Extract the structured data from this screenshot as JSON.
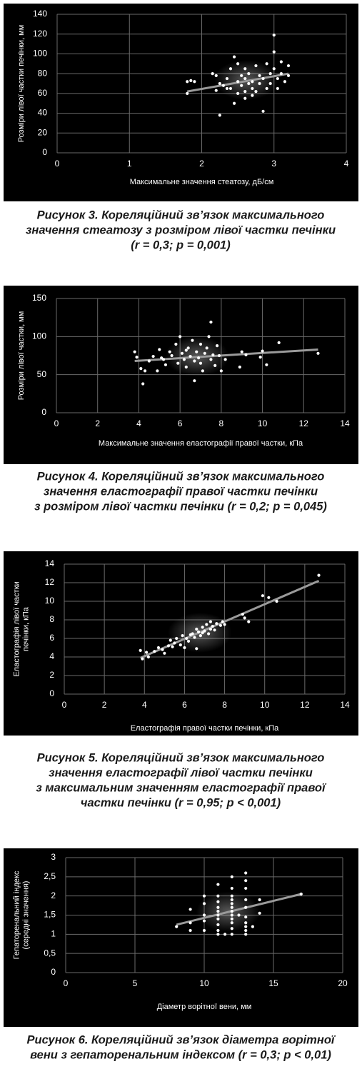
{
  "chart_data": [
    {
      "type": "scatter",
      "xlabel": "Максимальне значення стеатозу, дБ/см",
      "ylabel": [
        "Розміри лівої частки печінки, мм"
      ],
      "caption": [
        "Рисунок 3. Кореляційний зв’язок максимального",
        "значення стеатозу з розміром лівої частки печінки",
        "(r = 0,3; p = 0,001)"
      ],
      "xlim": [
        0,
        4
      ],
      "xticks": [
        0,
        1,
        2,
        3,
        4
      ],
      "ylim": [
        0,
        140
      ],
      "yticks": [
        0,
        20,
        40,
        60,
        80,
        100,
        120,
        140
      ],
      "grid": true,
      "color": "#ffffff",
      "trend_color": "#9a9a9a",
      "x": [
        1.8,
        1.8,
        1.85,
        1.9,
        2.15,
        2.2,
        2.2,
        2.25,
        2.3,
        2.25,
        2.35,
        2.4,
        2.4,
        2.45,
        2.5,
        2.5,
        2.5,
        2.55,
        2.55,
        2.6,
        2.6,
        2.6,
        2.65,
        2.65,
        2.7,
        2.7,
        2.75,
        2.75,
        2.8,
        2.8,
        2.85,
        2.85,
        2.9,
        2.9,
        2.95,
        2.95,
        3.0,
        3.0,
        3.0,
        3.05,
        3.05,
        3.1,
        3.1,
        3.15,
        3.2,
        3.2,
        2.45,
        2.6,
        2.7,
        2.35
      ],
      "values": [
        60,
        72,
        73,
        72,
        80,
        78,
        63,
        70,
        68,
        38,
        75,
        85,
        65,
        97,
        90,
        72,
        60,
        78,
        68,
        75,
        85,
        55,
        70,
        80,
        72,
        65,
        88,
        62,
        70,
        78,
        75,
        42,
        65,
        90,
        80,
        70,
        119,
        102,
        85,
        75,
        65,
        92,
        80,
        72,
        88,
        78,
        50,
        62,
        58,
        65
      ],
      "trend": {
        "x": [
          1.8,
          3.2
        ],
        "values": [
          62,
          80
        ]
      }
    },
    {
      "type": "scatter",
      "xlabel": "Максимальне значення еластографії правої частки, кПа",
      "ylabel": [
        "Розміри лівої частки, мм"
      ],
      "caption": [
        "Рисунок 4. Кореляційний зв’язок максимального",
        "значення еластографії правої частки печінки",
        "з розміром лівої частки печінки (r = 0,2; p = 0,045)"
      ],
      "xlim": [
        0,
        14
      ],
      "xticks": [
        0,
        2,
        4,
        6,
        8,
        10,
        12,
        14
      ],
      "ylim": [
        0,
        150
      ],
      "yticks": [
        0,
        50,
        100,
        150
      ],
      "grid": true,
      "color": "#ffffff",
      "trend_color": "#9a9a9a",
      "x": [
        3.8,
        3.9,
        4.1,
        4.2,
        4.3,
        4.5,
        4.7,
        4.9,
        5,
        5.2,
        5.3,
        5.5,
        5.6,
        5.8,
        5.9,
        6,
        6.1,
        6.2,
        6.3,
        6.4,
        6.5,
        6.6,
        6.7,
        6.7,
        6.8,
        6.9,
        7,
        7,
        7.1,
        7.2,
        7.3,
        7.4,
        7.5,
        7.6,
        7.7,
        7.8,
        7.9,
        8,
        8.2,
        8.9,
        9,
        9.2,
        9.9,
        10,
        10.2,
        10.8,
        12.7,
        7.5,
        6.3,
        5.1
      ],
      "values": [
        80,
        73,
        58,
        38,
        55,
        68,
        74,
        55,
        83,
        70,
        63,
        80,
        75,
        90,
        65,
        100,
        78,
        70,
        60,
        85,
        74,
        95,
        68,
        42,
        80,
        72,
        90,
        65,
        55,
        78,
        85,
        100,
        70,
        76,
        62,
        88,
        75,
        55,
        70,
        60,
        80,
        76,
        73,
        81,
        63,
        92,
        78,
        119,
        82,
        72
      ],
      "trend": {
        "x": [
          3.8,
          12.7
        ],
        "values": [
          68,
          83
        ]
      }
    },
    {
      "type": "scatter",
      "xlabel": "Еластографія правої частки печінки, кПа",
      "ylabel": [
        "Еластографія лівої частки",
        "печінки, кПа"
      ],
      "caption": [
        "Рисунок 5. Кореляційний зв’язок максимального",
        "значення еластографії лівої частки печінки",
        "з максимальним значенням еластографії правої",
        "частки печінки (r = 0,95; p < 0,001)"
      ],
      "xlim": [
        0,
        14
      ],
      "xticks": [
        0,
        2,
        4,
        6,
        8,
        10,
        12,
        14
      ],
      "ylim": [
        0,
        14
      ],
      "yticks": [
        0,
        2,
        4,
        6,
        8,
        10,
        12,
        14
      ],
      "grid": true,
      "color": "#ffffff",
      "trend_color": "#9a9a9a",
      "x": [
        3.8,
        3.9,
        4.1,
        4.2,
        4.5,
        4.7,
        4.9,
        5.0,
        5.2,
        5.3,
        5.5,
        5.6,
        5.8,
        5.9,
        6.0,
        6.1,
        6.2,
        6.3,
        6.4,
        6.5,
        6.6,
        6.6,
        6.7,
        6.8,
        6.9,
        7.0,
        7.1,
        7.2,
        7.3,
        7.4,
        7.5,
        7.6,
        7.8,
        7.9,
        8.0,
        8.9,
        9.0,
        9.2,
        9.9,
        10.2,
        10.6,
        12.7,
        5.4,
        6.9,
        7.3
      ],
      "values": [
        4.7,
        3.8,
        4.5,
        4.0,
        4.6,
        5.0,
        4.8,
        4.4,
        5.2,
        5.8,
        5.5,
        6.0,
        5.3,
        6.3,
        5.0,
        6.0,
        5.7,
        6.4,
        6.5,
        6.1,
        7.0,
        4.9,
        6.7,
        6.3,
        7.2,
        6.8,
        7.5,
        6.5,
        7.0,
        7.3,
        6.9,
        7.6,
        7.4,
        7.8,
        7.5,
        8.6,
        8.2,
        7.8,
        10.6,
        10.4,
        10.0,
        12.8,
        5.1,
        6.6,
        7.8
      ],
      "trend": {
        "x": [
          3.8,
          12.7
        ],
        "values": [
          3.9,
          12.2
        ]
      }
    },
    {
      "type": "scatter",
      "xlabel": "Діаметр ворітної вени, мм",
      "ylabel": [
        "Гепаторенальний індекс",
        "(середні значення)"
      ],
      "caption": [
        "Рисунок 6. Кореляційний зв’язок діаметра ворітної",
        "вени з гепаторенальним індексом (r = 0,3; p < 0,01)"
      ],
      "xlim": [
        0,
        20
      ],
      "xticks": [
        0,
        5,
        10,
        15,
        20
      ],
      "ylim": [
        0,
        3
      ],
      "yticks": [
        0,
        {
          "value": 0.5,
          "label": "0,5"
        },
        1,
        {
          "value": 1.5,
          "label": "1,5"
        },
        2,
        {
          "value": 2.5,
          "label": "2,5"
        },
        3
      ],
      "grid": true,
      "color": "#ffffff",
      "trend_color": "#9a9a9a",
      "x": [
        8,
        9,
        9,
        9,
        10,
        10,
        10,
        10,
        10,
        11,
        11,
        11,
        11,
        11,
        11,
        11,
        11,
        11,
        11,
        11.5,
        12,
        12,
        12,
        12,
        12,
        12,
        12,
        12,
        12,
        12,
        12,
        12,
        12.5,
        13,
        13,
        13,
        13,
        13,
        13,
        13,
        13,
        13,
        13.5,
        14,
        14,
        17,
        13
      ],
      "values": [
        1.2,
        1.1,
        1.3,
        1.65,
        1.1,
        1.35,
        1.5,
        1.8,
        2.0,
        1.0,
        1.1,
        1.25,
        1.4,
        1.5,
        1.6,
        1.7,
        1.85,
        2.0,
        2.3,
        1.0,
        1.0,
        1.15,
        1.3,
        1.4,
        1.5,
        1.6,
        1.7,
        1.8,
        1.9,
        2.0,
        2.2,
        2.5,
        1.5,
        1.1,
        1.2,
        1.3,
        1.45,
        1.7,
        1.9,
        2.2,
        2.4,
        2.6,
        1.2,
        1.55,
        1.9,
        2.05,
        1.0
      ],
      "trend": {
        "x": [
          8,
          17
        ],
        "values": [
          1.25,
          2.05
        ]
      }
    }
  ]
}
